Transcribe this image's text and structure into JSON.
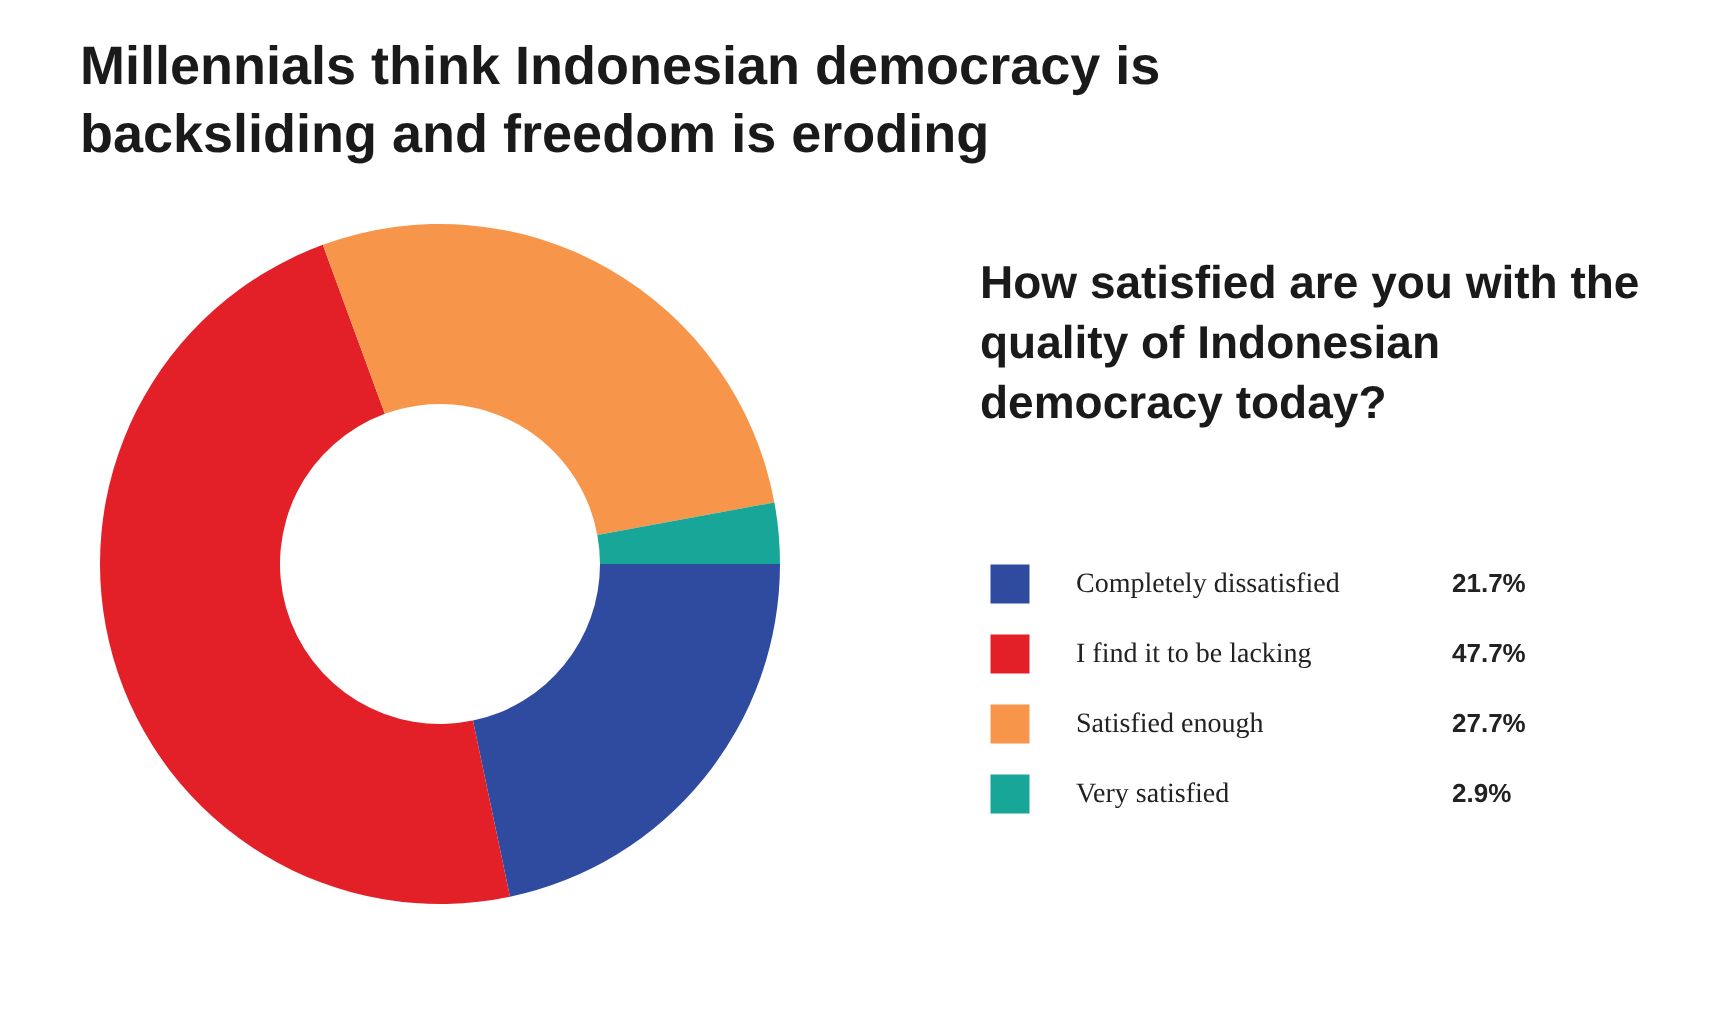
{
  "chart_data": {
    "type": "donut",
    "title": "Millennials think Indonesian democracy is backsliding and freedom is eroding",
    "legend_title": "How satisfied are you with the quality of Indonesian democracy today?",
    "categories": [
      "Completely dissatisfied",
      "I find it to be lacking",
      "Satisfied enough",
      "Very satisfied"
    ],
    "values": [
      21.7,
      47.7,
      27.7,
      2.9
    ],
    "colors": [
      "#2f4b9f",
      "#e32028",
      "#f7964a",
      "#17a697"
    ],
    "value_labels": [
      "21.7%",
      "47.7%",
      "27.7%",
      "2.9%"
    ],
    "legend": "right"
  }
}
